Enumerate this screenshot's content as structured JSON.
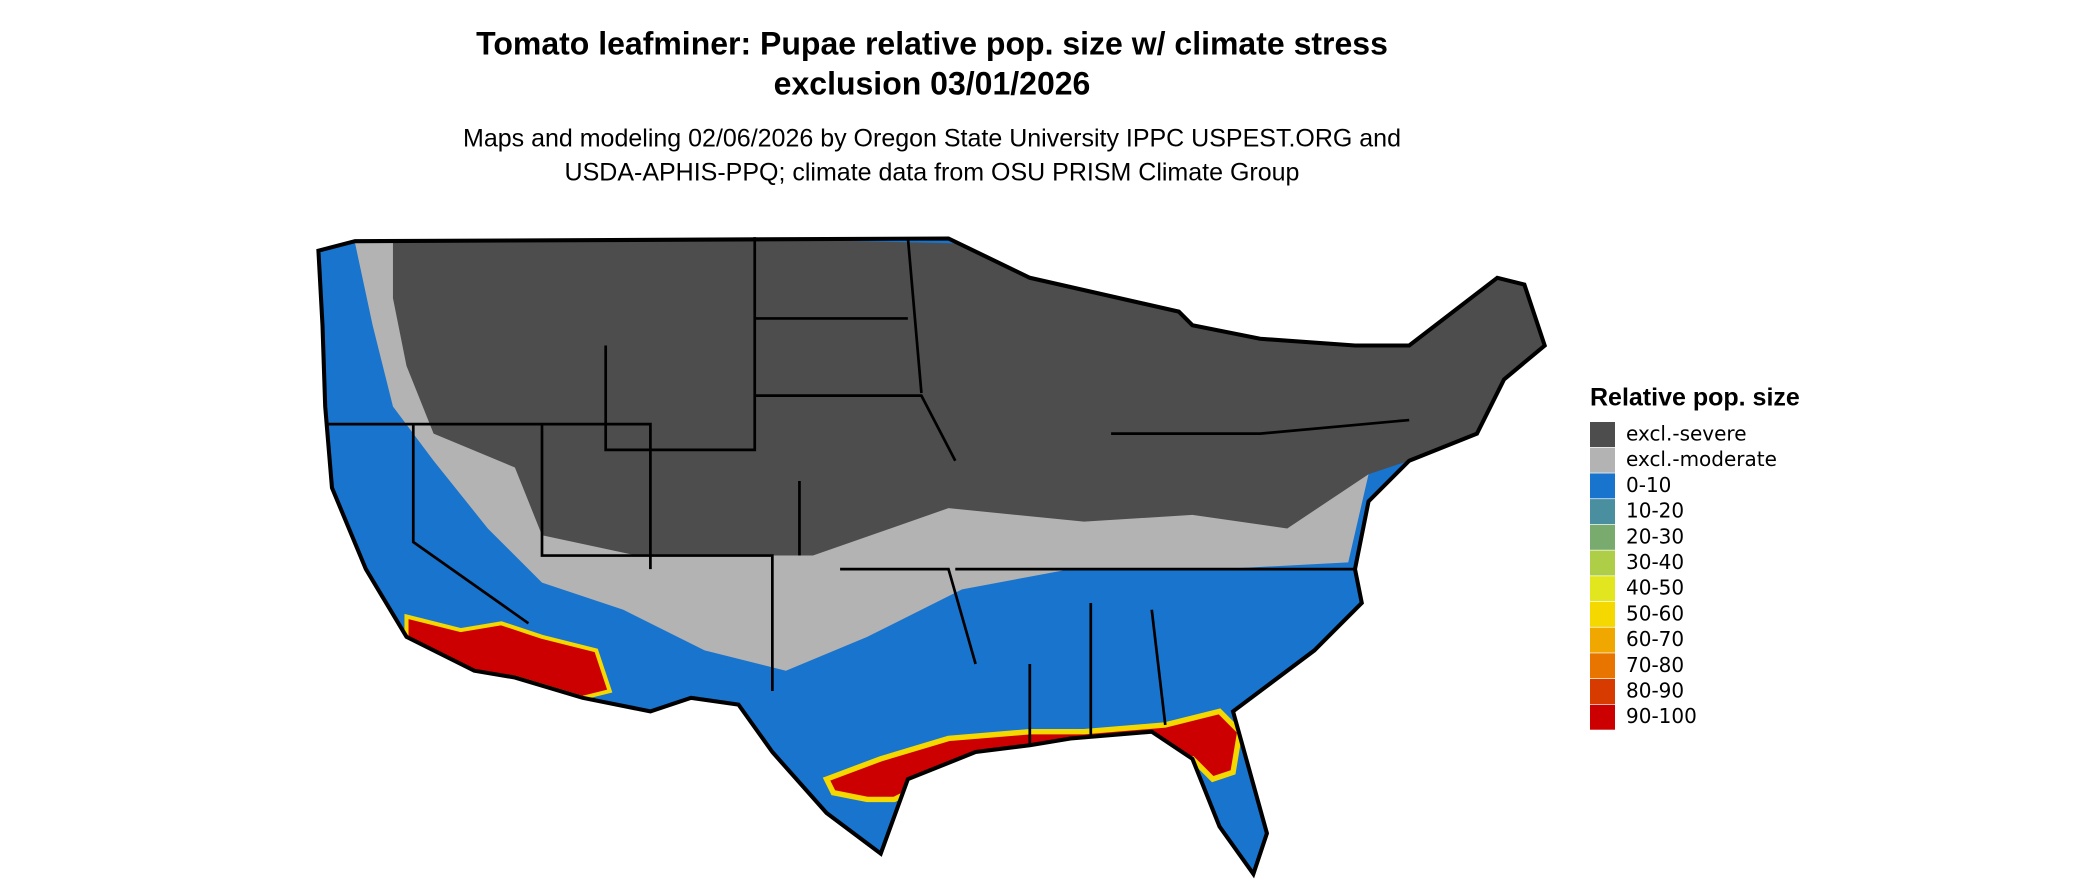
{
  "title": [
    "Tomato leafminer: Pupae relative pop. size w/ climate stress",
    "exclusion 03/01/2026"
  ],
  "subtitle": [
    "Maps and modeling 02/06/2026 by Oregon State University IPPC USPEST.ORG and",
    "USDA-APHIS-PPQ; climate data from OSU PRISM Climate Group"
  ],
  "legend": {
    "title": "Relative pop. size",
    "items": [
      {
        "label": "excl.-severe",
        "color": "#4d4d4d"
      },
      {
        "label": "excl.-moderate",
        "color": "#b3b3b3"
      },
      {
        "label": "0-10",
        "color": "#1874cd"
      },
      {
        "label": "10-20",
        "color": "#4a8fa0"
      },
      {
        "label": "20-30",
        "color": "#7aab6e"
      },
      {
        "label": "30-40",
        "color": "#aece47"
      },
      {
        "label": "40-50",
        "color": "#e2e61e"
      },
      {
        "label": "50-60",
        "color": "#f5d800"
      },
      {
        "label": "60-70",
        "color": "#f0a800"
      },
      {
        "label": "70-80",
        "color": "#e87500"
      },
      {
        "label": "80-90",
        "color": "#d83b00"
      },
      {
        "label": "90-100",
        "color": "#cc0000"
      }
    ]
  }
}
